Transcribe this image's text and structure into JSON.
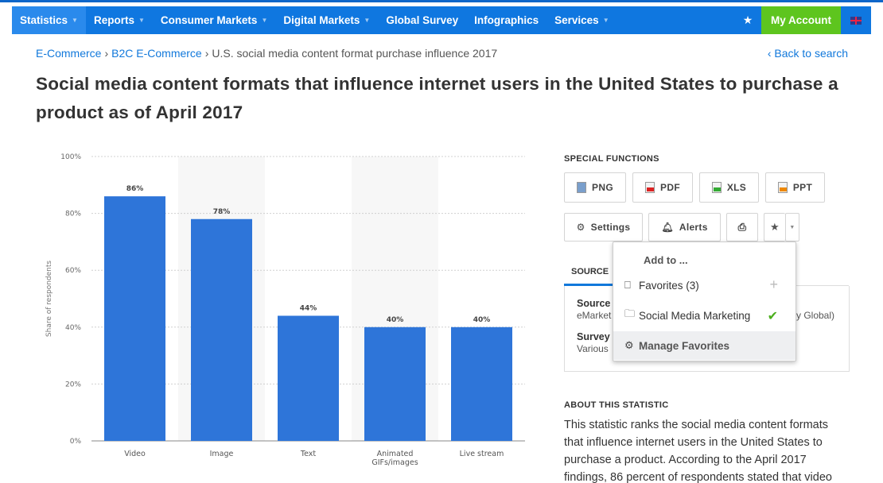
{
  "nav": {
    "items": [
      {
        "label": "Statistics",
        "caret": true
      },
      {
        "label": "Reports",
        "caret": true
      },
      {
        "label": "Consumer Markets",
        "caret": true
      },
      {
        "label": "Digital Markets",
        "caret": true
      },
      {
        "label": "Global Survey",
        "caret": false
      },
      {
        "label": "Infographics",
        "caret": false
      },
      {
        "label": "Services",
        "caret": true
      }
    ],
    "account_label": "My Account",
    "colors": {
      "bar": "#0f77e0",
      "account": "#5ec51e"
    }
  },
  "breadcrumb": {
    "link1": "E-Commerce",
    "link2": "B2C E-Commerce",
    "current": "U.S. social media content format purchase influence 2017"
  },
  "back_link": "‹ Back to search",
  "title": "Social media content formats that influence internet users in the United States to purchase a product as of April 2017",
  "chart_data": {
    "type": "bar",
    "categories": [
      "Video",
      "Image",
      "Text",
      "Animated GIFs/images",
      "Live stream"
    ],
    "values": [
      86,
      78,
      44,
      40,
      40
    ],
    "value_labels": [
      "86%",
      "78%",
      "44%",
      "40%",
      "40%"
    ],
    "ylabel": "Share of respondents",
    "yticks": [
      "0%",
      "20%",
      "40%",
      "60%",
      "80%",
      "100%"
    ],
    "ylim": [
      0,
      100
    ],
    "bar_color": "#2e75d9",
    "grid": true
  },
  "special_functions": {
    "title": "SPECIAL FUNCTIONS",
    "png": "PNG",
    "pdf": "PDF",
    "xls": "XLS",
    "ppt": "PPT",
    "settings": "Settings",
    "alerts": "Alerts"
  },
  "source_tab": "SOURCE",
  "source": {
    "source_label": "Source",
    "source_value": "eMarket",
    "source_value_right": "y Global)",
    "survey_label": "Survey",
    "survey_value": "Various"
  },
  "dropdown": {
    "head": "Add to ...",
    "favorites": "Favorites (3)",
    "social": "Social Media Marketing",
    "manage": "Manage Favorites"
  },
  "about": {
    "title": "ABOUT THIS STATISTIC",
    "text": "This statistic ranks the social media content formats that influence internet users in the United States to purchase a product. According to the April 2017 findings, 86 percent of respondents stated that video"
  }
}
